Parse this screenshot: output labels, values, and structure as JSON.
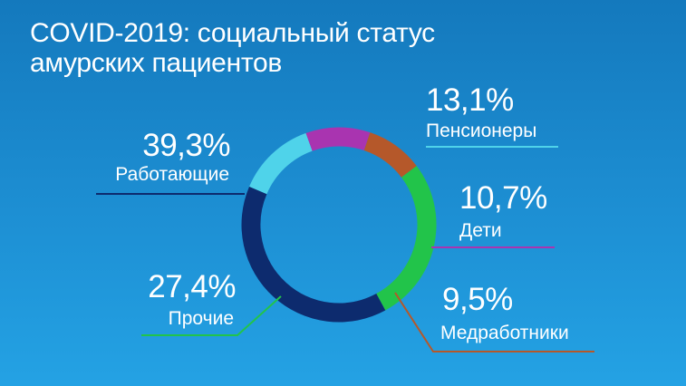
{
  "title": {
    "line1": "COVID-2019: социальный статус",
    "line2": "амурских пациентов"
  },
  "chart_data": {
    "type": "pie",
    "donut": true,
    "unit": "%",
    "categories": [
      "Пенсионеры",
      "Дети",
      "Медработники",
      "Прочие",
      "Работающие"
    ],
    "values": [
      13.1,
      10.7,
      9.5,
      27.4,
      39.3
    ],
    "labels": [
      "13,1%",
      "10,7%",
      "9,5%",
      "27,4%",
      "39,3%"
    ],
    "colors": [
      "#4fd3ea",
      "#a934b0",
      "#b5582a",
      "#22c44a",
      "#0d2b6e"
    ],
    "legend": "labels-around"
  }
}
